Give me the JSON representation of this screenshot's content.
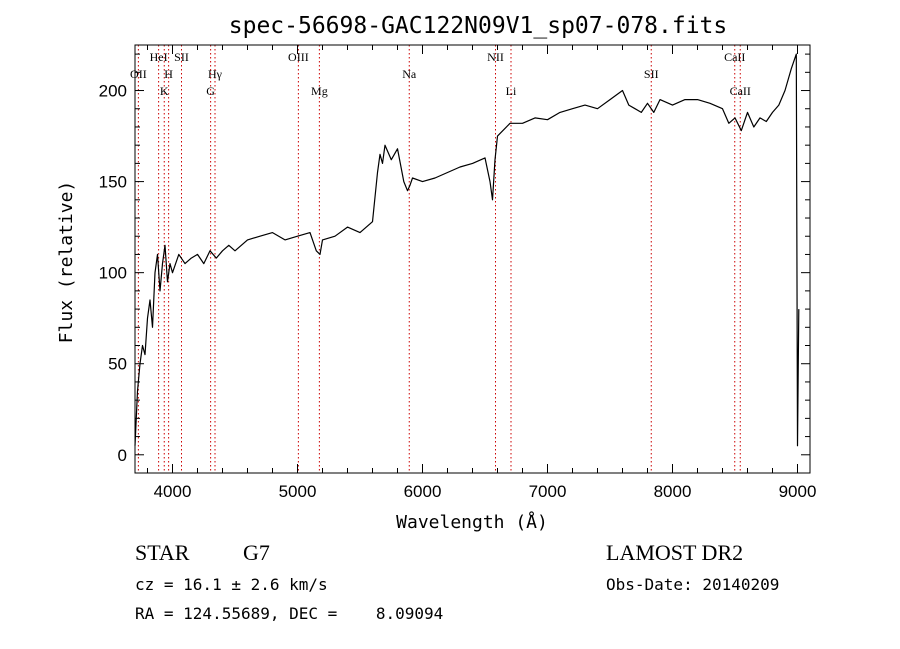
{
  "chart_data": {
    "type": "line",
    "title": "spec-56698-GAC122N09V1_sp07-078.fits",
    "xlabel": "Wavelength (Å)",
    "ylabel": "Flux (relative)",
    "xlim": [
      3700,
      9100
    ],
    "ylim": [
      -10,
      225
    ],
    "xticks": [
      4000,
      5000,
      6000,
      7000,
      8000,
      9000
    ],
    "yticks": [
      0,
      50,
      100,
      150,
      200
    ],
    "grid": false,
    "line_color": "#000000",
    "marker_line_color": "#cc0000",
    "series": [
      {
        "x": [
          3700,
          3720,
          3740,
          3760,
          3780,
          3800,
          3820,
          3840,
          3860,
          3880,
          3900,
          3920,
          3940,
          3960,
          3980,
          4000,
          4050,
          4100,
          4150,
          4200,
          4250,
          4300,
          4350,
          4400,
          4450,
          4500,
          4600,
          4700,
          4800,
          4900,
          5000,
          5100,
          5150,
          5180,
          5200,
          5300,
          5400,
          5500,
          5600,
          5640,
          5660,
          5680,
          5700,
          5750,
          5800,
          5850,
          5880,
          5900,
          5920,
          6000,
          6100,
          6200,
          6300,
          6400,
          6500,
          6540,
          6560,
          6580,
          6600,
          6700,
          6800,
          6900,
          7000,
          7100,
          7200,
          7300,
          7400,
          7500,
          7600,
          7650,
          7700,
          7750,
          7800,
          7850,
          7900,
          8000,
          8100,
          8200,
          8300,
          8400,
          8450,
          8500,
          8550,
          8600,
          8650,
          8700,
          8750,
          8800,
          8850,
          8900,
          8950,
          8990,
          9000,
          9010
        ],
        "y": [
          5,
          35,
          50,
          60,
          55,
          75,
          85,
          70,
          100,
          110,
          90,
          105,
          115,
          95,
          105,
          100,
          110,
          105,
          108,
          110,
          105,
          112,
          108,
          112,
          115,
          112,
          118,
          120,
          122,
          118,
          120,
          122,
          112,
          110,
          118,
          120,
          125,
          122,
          128,
          155,
          165,
          160,
          170,
          162,
          168,
          150,
          145,
          148,
          152,
          150,
          152,
          155,
          158,
          160,
          163,
          150,
          140,
          162,
          175,
          182,
          182,
          185,
          184,
          188,
          190,
          192,
          190,
          195,
          200,
          192,
          190,
          188,
          193,
          188,
          195,
          192,
          195,
          195,
          193,
          190,
          182,
          185,
          178,
          188,
          180,
          185,
          183,
          188,
          192,
          200,
          212,
          220,
          5,
          80
        ]
      }
    ],
    "lines": [
      {
        "label": "OII",
        "x": 3727,
        "row": 2
      },
      {
        "label": "HeI",
        "x": 3889,
        "row": 1
      },
      {
        "label": "K",
        "x": 3934,
        "row": 3
      },
      {
        "label": "H",
        "x": 3969,
        "row": 2
      },
      {
        "label": "SII",
        "x": 4072,
        "row": 1
      },
      {
        "label": "Hγ",
        "x": 4340,
        "row": 2
      },
      {
        "label": "G",
        "x": 4305,
        "row": 3
      },
      {
        "label": "OIII",
        "x": 5007,
        "row": 1
      },
      {
        "label": "Mg",
        "x": 5175,
        "row": 3
      },
      {
        "label": "Na",
        "x": 5894,
        "row": 2
      },
      {
        "label": "NII",
        "x": 6584,
        "row": 1
      },
      {
        "label": "Li",
        "x": 6708,
        "row": 3
      },
      {
        "label": "SII",
        "x": 7830,
        "row": 2
      },
      {
        "label": "CaII",
        "x": 8498,
        "row": 1
      },
      {
        "label": "CaII",
        "x": 8542,
        "row": 3
      }
    ]
  },
  "footer": {
    "object_class": "STAR",
    "subclass": "G7",
    "survey": "LAMOST DR2",
    "redshift": "cz = 16.1 ± 2.6 km/s",
    "obs_date": "Obs-Date: 20140209",
    "coords": "RA = 124.55689, DEC =    8.09094"
  }
}
